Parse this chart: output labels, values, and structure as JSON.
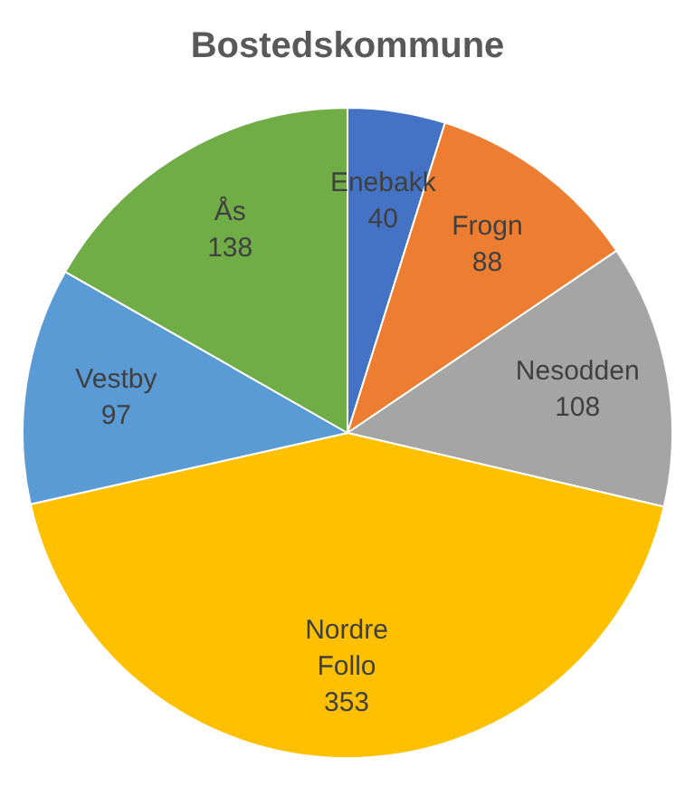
{
  "chart_data": {
    "type": "pie",
    "title": "Bostedskommune",
    "categories": [
      "Enebakk",
      "Frogn",
      "Nesodden",
      "Nordre Follo",
      "Vestby",
      "Ås"
    ],
    "values": [
      40,
      88,
      108,
      353,
      97,
      138
    ],
    "colors": [
      "#4472c4",
      "#ed7d31",
      "#a5a5a5",
      "#ffc000",
      "#5b9bd5",
      "#70ad47"
    ],
    "data_labels": true,
    "legend": false
  }
}
